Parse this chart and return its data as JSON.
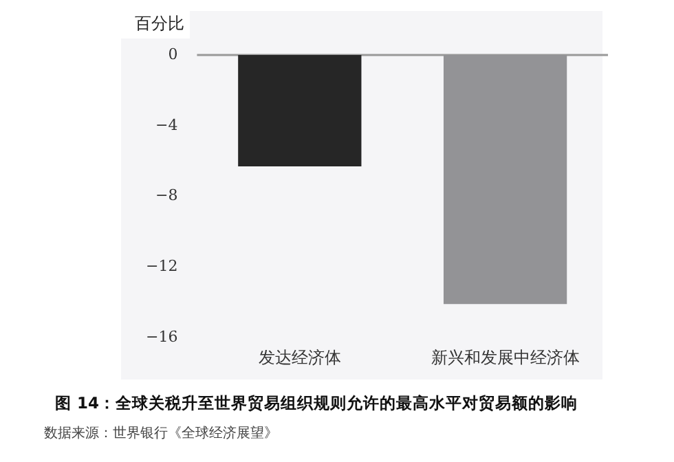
{
  "chart_data": {
    "type": "bar",
    "title": "图 14：全球关税升至世界贸易组织规则允许的最高水平对贸易额的影响",
    "ylabel": "百分比",
    "categories": [
      "发达经济体",
      "新兴和发展中经济体"
    ],
    "values": [
      -6.3,
      -14.1
    ],
    "colors": [
      "#262626",
      "#939396"
    ],
    "ylim": [
      -16,
      0
    ],
    "yticks": [
      0,
      -4,
      -8,
      -12,
      -16
    ],
    "grid": false,
    "legend": false,
    "annotations": [
      "数据来源：世界银行《全球经济展望》"
    ]
  }
}
